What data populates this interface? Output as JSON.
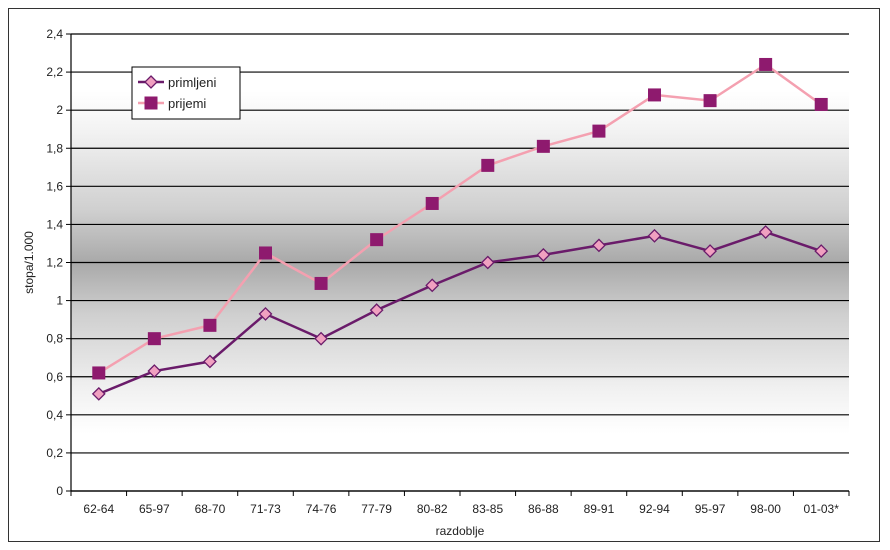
{
  "chart_data": {
    "type": "line",
    "title": "",
    "xlabel": "razdoblje",
    "ylabel": "stopa/1.000",
    "categories": [
      "62-64",
      "65-97",
      "68-70",
      "71-73",
      "74-76",
      "77-79",
      "80-82",
      "83-85",
      "86-88",
      "89-91",
      "92-94",
      "95-97",
      "98-00",
      "01-03*"
    ],
    "ylim": [
      0,
      2.4
    ],
    "yticks": [
      "0",
      "0,2",
      "0,4",
      "0,6",
      "0,8",
      "1",
      "1,2",
      "1,4",
      "1,6",
      "1,8",
      "2",
      "2,2",
      "2,4"
    ],
    "grid": true,
    "legend_position": "top-left",
    "series": [
      {
        "name": "primljeni",
        "marker": "diamond",
        "line_color": "#6a1b6a",
        "marker_color": "#f0a0c0",
        "values": [
          0.51,
          0.63,
          0.68,
          0.93,
          0.8,
          0.95,
          1.08,
          1.2,
          1.24,
          1.29,
          1.34,
          1.26,
          1.36,
          1.26
        ]
      },
      {
        "name": "prijemi",
        "marker": "square",
        "line_color": "#f4a0b0",
        "marker_color": "#8e1a6e",
        "values": [
          0.62,
          0.8,
          0.87,
          1.25,
          1.09,
          1.32,
          1.51,
          1.71,
          1.81,
          1.89,
          2.08,
          2.05,
          2.24,
          2.03
        ]
      }
    ]
  }
}
